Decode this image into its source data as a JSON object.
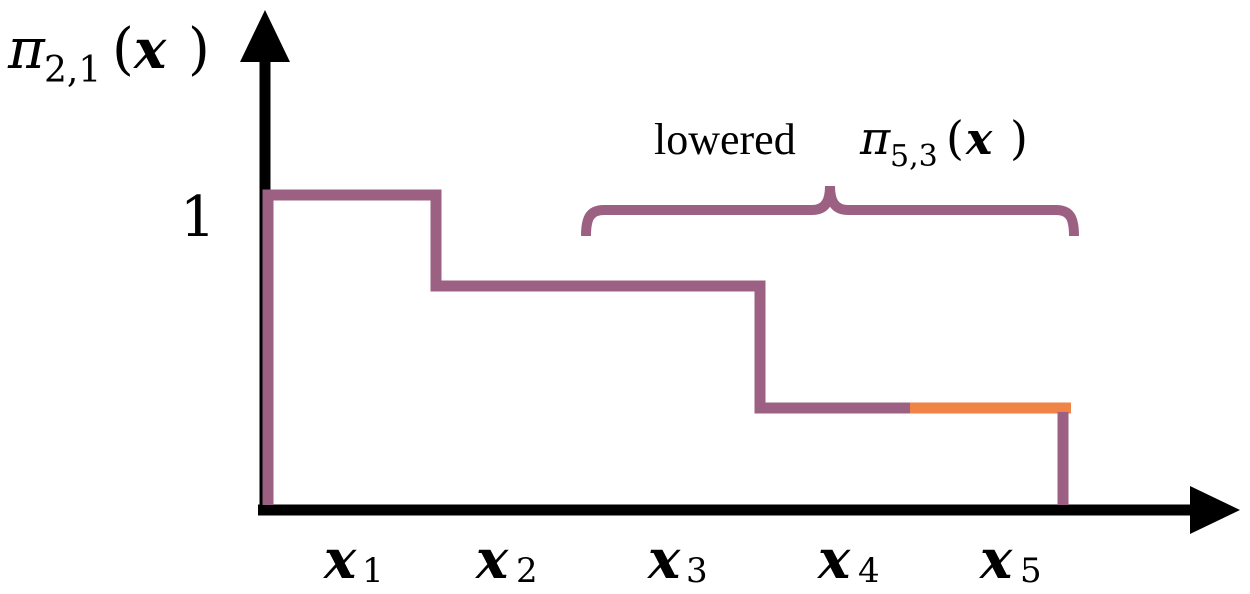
{
  "colors": {
    "axis": "#000000",
    "step_curve": "#9c6182",
    "lowered_segment": "#f08446",
    "brace": "#9c6182"
  },
  "y_axis": {
    "label_symbol": "π",
    "label_subscript": "2,1",
    "label_arg_open": "(",
    "label_arg": "x",
    "label_arg_close": ")",
    "tick_one": "1"
  },
  "x_axis": {
    "ticks": [
      {
        "symbol": "x",
        "subscript": "1"
      },
      {
        "symbol": "x",
        "subscript": "2"
      },
      {
        "symbol": "x",
        "subscript": "3"
      },
      {
        "symbol": "x",
        "subscript": "4"
      },
      {
        "symbol": "x",
        "subscript": "5"
      }
    ]
  },
  "annotation": {
    "word": "lowered",
    "symbol": "π",
    "subscript": "5,3",
    "arg_open": "(",
    "arg": "x",
    "arg_close": ")"
  },
  "step_levels": {
    "max": 1,
    "x1": 1.0,
    "x2_x3": 0.72,
    "x4_x5": 0.32
  }
}
